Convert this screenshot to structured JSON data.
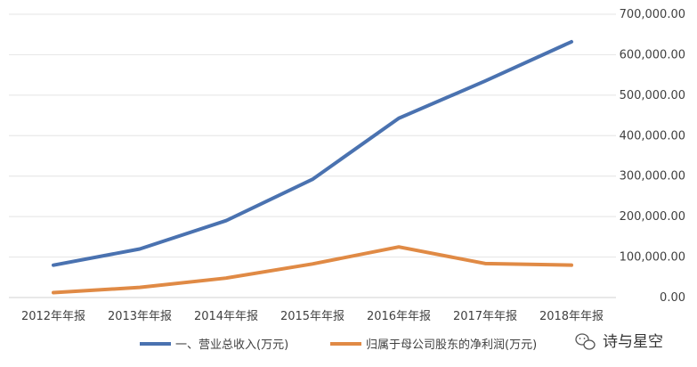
{
  "chart_data": {
    "type": "line",
    "categories": [
      "2012年年报",
      "2013年年报",
      "2014年年报",
      "2015年年报",
      "2016年年报",
      "2017年年报",
      "2018年年报"
    ],
    "series": [
      {
        "name": "一、营业总收入(万元)",
        "color": "#4a72b0",
        "values": [
          80000,
          120000,
          190000,
          292000,
          443000,
          535000,
          632000
        ]
      },
      {
        "name": "归属于母公司股东的净利润(万元)",
        "color": "#e08a45",
        "values": [
          12000,
          25000,
          48000,
          83000,
          125000,
          84000,
          80000
        ]
      }
    ],
    "yticks": [
      "0.00",
      "100,000.00",
      "200,000.00",
      "300,000.00",
      "400,000.00",
      "500,000.00",
      "600,000.00",
      "700,000.00"
    ],
    "ylim": [
      0,
      700000
    ],
    "y_axis_side": "right",
    "grid": true,
    "legend_position": "bottom",
    "title": "",
    "xlabel": "",
    "ylabel": ""
  },
  "watermark": {
    "icon": "wechat-icon",
    "text": "诗与星空"
  }
}
